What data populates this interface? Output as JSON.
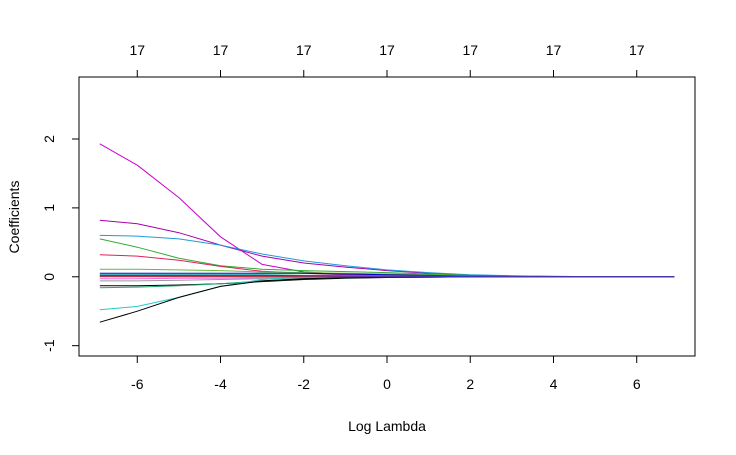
{
  "chart_data": {
    "type": "line",
    "title": "",
    "xlabel": "Log Lambda",
    "ylabel": "Coefficients",
    "xlim": [
      -7.4,
      7.4
    ],
    "ylim": [
      -1.15,
      2.9
    ],
    "x_ticks": [
      "-6",
      "-4",
      "-2",
      "0",
      "2",
      "4",
      "6"
    ],
    "x_tick_values": [
      -6,
      -4,
      -2,
      0,
      2,
      4,
      6
    ],
    "y_ticks": [
      "-1",
      "0",
      "1",
      "2"
    ],
    "y_tick_values": [
      -1,
      0,
      1,
      2
    ],
    "top_ticks": [
      "17",
      "17",
      "17",
      "17",
      "17",
      "17",
      "17"
    ],
    "top_tick_values": [
      -6,
      -4,
      -2,
      0,
      2,
      4,
      6
    ],
    "grid": false,
    "x": [
      -6.9,
      -6,
      -5,
      -4,
      -3,
      -2,
      -1,
      0,
      1,
      2,
      3,
      4,
      5,
      6,
      6.9
    ],
    "series": [
      {
        "color": "#cc00cc",
        "values": [
          1.93,
          1.62,
          1.15,
          0.58,
          0.18,
          0.07,
          0.04,
          0.02,
          0.01,
          0.006,
          0.003,
          0.001,
          0.0005,
          0.0002,
          0.0001
        ]
      },
      {
        "color": "#aa00aa",
        "values": [
          0.82,
          0.77,
          0.64,
          0.46,
          0.3,
          0.2,
          0.14,
          0.09,
          0.05,
          0.025,
          0.012,
          0.005,
          0.002,
          0.0008,
          0.0003
        ]
      },
      {
        "color": "#2299dd",
        "values": [
          0.6,
          0.59,
          0.55,
          0.46,
          0.33,
          0.23,
          0.16,
          0.1,
          0.06,
          0.03,
          0.015,
          0.006,
          0.002,
          0.0008,
          0.0003
        ]
      },
      {
        "color": "#33aa33",
        "values": [
          0.55,
          0.43,
          0.27,
          0.16,
          0.11,
          0.09,
          0.075,
          0.06,
          0.04,
          0.02,
          0.01,
          0.004,
          0.0015,
          0.0005,
          0.0002
        ]
      },
      {
        "color": "#dd2255",
        "values": [
          0.32,
          0.3,
          0.24,
          0.15,
          0.08,
          0.05,
          0.03,
          0.02,
          0.01,
          0.005,
          0.002,
          0.001,
          0.0004,
          0.0001,
          0.0
        ]
      },
      {
        "color": "#66bb33",
        "values": [
          0.11,
          0.11,
          0.1,
          0.09,
          0.07,
          0.06,
          0.05,
          0.04,
          0.03,
          0.015,
          0.007,
          0.003,
          0.001,
          0.0004,
          0.0001
        ]
      },
      {
        "color": "#0000cc",
        "values": [
          0.05,
          0.05,
          0.05,
          0.05,
          0.05,
          0.05,
          0.04,
          0.03,
          0.02,
          0.01,
          0.005,
          0.002,
          0.0008,
          0.0003,
          0.0001
        ]
      },
      {
        "color": "#00aaaa",
        "values": [
          0.03,
          0.03,
          0.03,
          0.03,
          0.03,
          0.02,
          0.02,
          0.015,
          0.01,
          0.005,
          0.002,
          0.001,
          0.0004,
          0.0001,
          0.0
        ]
      },
      {
        "color": "#884488",
        "values": [
          0.01,
          0.01,
          0.01,
          0.01,
          0.01,
          0.01,
          0.008,
          0.005,
          0.003,
          0.002,
          0.001,
          0.0005,
          0.0002,
          0.0001,
          0.0
        ]
      },
      {
        "color": "#ee66ee",
        "values": [
          -0.03,
          -0.03,
          -0.02,
          -0.02,
          -0.015,
          -0.01,
          -0.008,
          -0.005,
          -0.003,
          -0.002,
          -0.001,
          -0.0005,
          -0.0002,
          -0.0001,
          0.0
        ]
      },
      {
        "color": "#999999",
        "values": [
          -0.06,
          -0.06,
          -0.05,
          -0.04,
          -0.03,
          -0.02,
          -0.01,
          -0.006,
          -0.004,
          -0.002,
          -0.001,
          -0.0005,
          -0.0002,
          -0.0001,
          0.0
        ]
      },
      {
        "color": "#000000",
        "values": [
          -0.13,
          -0.13,
          -0.12,
          -0.1,
          -0.07,
          -0.04,
          -0.02,
          -0.01,
          -0.005,
          -0.002,
          -0.001,
          -0.0005,
          -0.0002,
          -0.0001,
          0.0
        ]
      },
      {
        "color": "#22aa77",
        "values": [
          -0.16,
          -0.15,
          -0.13,
          -0.1,
          -0.06,
          -0.03,
          -0.015,
          -0.008,
          -0.004,
          -0.002,
          -0.001,
          -0.0005,
          -0.0002,
          -0.0001,
          0.0
        ]
      },
      {
        "color": "#22cccc",
        "values": [
          -0.48,
          -0.43,
          -0.3,
          -0.14,
          -0.04,
          0.0,
          0.01,
          0.008,
          0.006,
          0.004,
          0.002,
          0.001,
          0.0004,
          0.0001,
          0.0
        ]
      },
      {
        "color": "#000000",
        "values": [
          -0.66,
          -0.5,
          -0.3,
          -0.14,
          -0.06,
          -0.03,
          -0.015,
          -0.008,
          -0.004,
          -0.002,
          -0.001,
          -0.0005,
          -0.0002,
          -0.0001,
          0.0
        ]
      },
      {
        "color": "#cc3333",
        "values": [
          0.0,
          0.0,
          0.0,
          0.0,
          0.0,
          0.0,
          0.0,
          0.0,
          0.0,
          0.0,
          0.0,
          0.0,
          0.0,
          0.0,
          0.0
        ]
      },
      {
        "color": "#3333cc",
        "values": [
          0.02,
          0.02,
          0.02,
          0.02,
          0.02,
          0.015,
          0.01,
          0.008,
          0.005,
          0.003,
          0.001,
          0.0005,
          0.0002,
          0.0001,
          0.0
        ]
      }
    ]
  }
}
